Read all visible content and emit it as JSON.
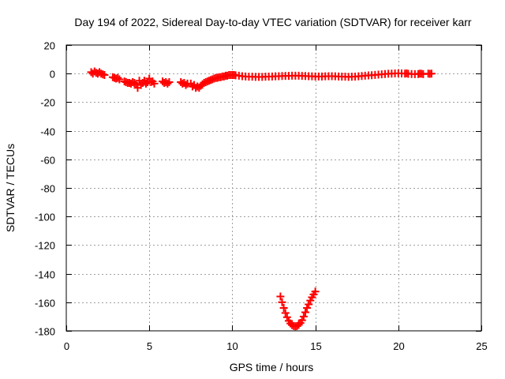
{
  "chart_data": {
    "type": "scatter",
    "title": "Day 194 of 2022, Sidereal Day-to-day VTEC variation (SDTVAR) for receiver karr",
    "xlabel": "GPS time / hours",
    "ylabel": "SDTVAR / TECUs",
    "xlim": [
      0,
      25
    ],
    "ylim": [
      -180,
      20
    ],
    "xticks": [
      0,
      5,
      10,
      15,
      20,
      25
    ],
    "yticks": [
      20,
      0,
      -20,
      -40,
      -60,
      -80,
      -100,
      -120,
      -140,
      -160,
      -180
    ],
    "grid": true,
    "marker": "plus",
    "color": "#ff0000",
    "series": [
      {
        "points": [
          [
            1.5,
            1.0
          ],
          [
            1.6,
            0.0
          ],
          [
            1.7,
            1.5
          ],
          [
            1.8,
            0.5
          ],
          [
            1.9,
            0.0
          ],
          [
            2.0,
            1.0
          ],
          [
            2.1,
            0.0
          ],
          [
            2.2,
            -0.5
          ],
          [
            2.3,
            -1.0
          ],
          [
            2.8,
            -2.5
          ],
          [
            2.9,
            -3.0
          ],
          [
            3.0,
            -3.5
          ],
          [
            3.1,
            -3.0
          ],
          [
            3.2,
            -4.0
          ],
          [
            3.5,
            -5.5
          ],
          [
            3.6,
            -6.0
          ],
          [
            3.7,
            -6.5
          ],
          [
            3.8,
            -6.5
          ],
          [
            3.9,
            -7.0
          ],
          [
            4.0,
            -6.0
          ],
          [
            4.1,
            -6.5
          ],
          [
            4.2,
            -7.5
          ],
          [
            4.3,
            -10.0
          ],
          [
            4.4,
            -5.0
          ],
          [
            4.5,
            -8.0
          ],
          [
            4.6,
            -6.5
          ],
          [
            4.7,
            -5.0
          ],
          [
            4.8,
            -7.0
          ],
          [
            4.9,
            -6.0
          ],
          [
            5.0,
            -3.5
          ],
          [
            5.1,
            -6.0
          ],
          [
            5.2,
            -5.5
          ],
          [
            5.3,
            -7.0
          ],
          [
            5.8,
            -5.5
          ],
          [
            5.9,
            -6.5
          ],
          [
            6.0,
            -6.0
          ],
          [
            6.1,
            -7.0
          ],
          [
            6.2,
            -6.0
          ],
          [
            6.9,
            -6.0
          ],
          [
            7.0,
            -7.0
          ],
          [
            7.1,
            -6.5
          ],
          [
            7.2,
            -8.0
          ],
          [
            7.3,
            -7.0
          ],
          [
            7.5,
            -7.0
          ],
          [
            7.6,
            -9.0
          ],
          [
            7.7,
            -8.0
          ],
          [
            7.8,
            -10.0
          ],
          [
            7.9,
            -9.0
          ],
          [
            8.0,
            -10.0
          ],
          [
            8.1,
            -8.5
          ],
          [
            8.2,
            -7.5
          ],
          [
            8.3,
            -6.5
          ],
          [
            8.4,
            -6.0
          ],
          [
            8.5,
            -5.5
          ],
          [
            8.6,
            -5.0
          ],
          [
            8.7,
            -4.5
          ],
          [
            8.8,
            -4.0
          ],
          [
            8.9,
            -3.5
          ],
          [
            9.0,
            -3.0
          ],
          [
            9.1,
            -3.0
          ],
          [
            9.2,
            -2.5
          ],
          [
            9.3,
            -2.5
          ],
          [
            9.4,
            -2.0
          ],
          [
            9.5,
            -2.0
          ],
          [
            9.6,
            -1.5
          ],
          [
            9.7,
            -1.5
          ],
          [
            9.8,
            -1.0
          ],
          [
            9.9,
            -1.0
          ],
          [
            10.0,
            -1.0
          ],
          [
            10.1,
            -1.0
          ],
          [
            10.2,
            -1.2
          ],
          [
            10.4,
            -1.5
          ],
          [
            10.6,
            -1.8
          ],
          [
            10.8,
            -2.0
          ],
          [
            11.0,
            -2.2
          ],
          [
            11.2,
            -2.2
          ],
          [
            11.4,
            -2.3
          ],
          [
            11.6,
            -2.3
          ],
          [
            11.8,
            -2.3
          ],
          [
            12.0,
            -2.2
          ],
          [
            12.2,
            -2.1
          ],
          [
            12.4,
            -2.0
          ],
          [
            12.6,
            -1.9
          ],
          [
            12.8,
            -1.8
          ],
          [
            13.0,
            -1.7
          ],
          [
            13.2,
            -1.6
          ],
          [
            13.4,
            -1.6
          ],
          [
            13.6,
            -1.5
          ],
          [
            13.8,
            -1.5
          ],
          [
            14.0,
            -1.5
          ],
          [
            14.2,
            -1.6
          ],
          [
            14.4,
            -1.7
          ],
          [
            14.6,
            -1.8
          ],
          [
            14.8,
            -1.9
          ],
          [
            15.0,
            -2.0
          ],
          [
            15.2,
            -2.0
          ],
          [
            15.4,
            -2.0
          ],
          [
            15.6,
            -1.9
          ],
          [
            15.8,
            -1.8
          ],
          [
            16.0,
            -1.8
          ],
          [
            16.2,
            -1.9
          ],
          [
            16.4,
            -2.0
          ],
          [
            16.6,
            -2.1
          ],
          [
            16.8,
            -2.2
          ],
          [
            17.0,
            -2.3
          ],
          [
            17.2,
            -2.2
          ],
          [
            17.4,
            -2.1
          ],
          [
            17.6,
            -1.9
          ],
          [
            17.8,
            -1.7
          ],
          [
            18.0,
            -1.5
          ],
          [
            18.2,
            -1.3
          ],
          [
            18.4,
            -1.1
          ],
          [
            18.6,
            -0.9
          ],
          [
            18.8,
            -0.7
          ],
          [
            19.0,
            -0.5
          ],
          [
            19.2,
            -0.3
          ],
          [
            19.4,
            -0.1
          ],
          [
            19.6,
            0.0
          ],
          [
            19.8,
            0.1
          ],
          [
            20.0,
            0.2
          ],
          [
            20.2,
            0.1
          ],
          [
            20.4,
            0.0
          ],
          [
            20.5,
            0.2
          ],
          [
            20.6,
            -0.2
          ],
          [
            20.8,
            -0.3
          ],
          [
            21.0,
            -0.4
          ],
          [
            21.2,
            -0.3
          ],
          [
            21.3,
            0.0
          ],
          [
            21.4,
            -0.1
          ],
          [
            21.5,
            -0.4
          ],
          [
            21.8,
            0.0
          ],
          [
            21.9,
            -0.2
          ],
          [
            22.0,
            0.0
          ],
          [
            12.9,
            -156.0
          ],
          [
            13.0,
            -160.0
          ],
          [
            13.1,
            -164.0
          ],
          [
            13.2,
            -167.5
          ],
          [
            13.3,
            -170.5
          ],
          [
            13.4,
            -173.0
          ],
          [
            13.5,
            -174.8
          ],
          [
            13.6,
            -176.0
          ],
          [
            13.7,
            -176.6
          ],
          [
            13.8,
            -176.8
          ],
          [
            13.9,
            -176.6
          ],
          [
            14.0,
            -175.8
          ],
          [
            14.1,
            -174.5
          ],
          [
            14.2,
            -172.6
          ],
          [
            14.3,
            -170.0
          ],
          [
            14.4,
            -167.0
          ],
          [
            14.5,
            -164.0
          ],
          [
            14.6,
            -161.5
          ],
          [
            14.7,
            -158.8
          ],
          [
            14.8,
            -156.5
          ],
          [
            14.9,
            -154.5
          ],
          [
            15.0,
            -152.5
          ]
        ]
      }
    ]
  }
}
